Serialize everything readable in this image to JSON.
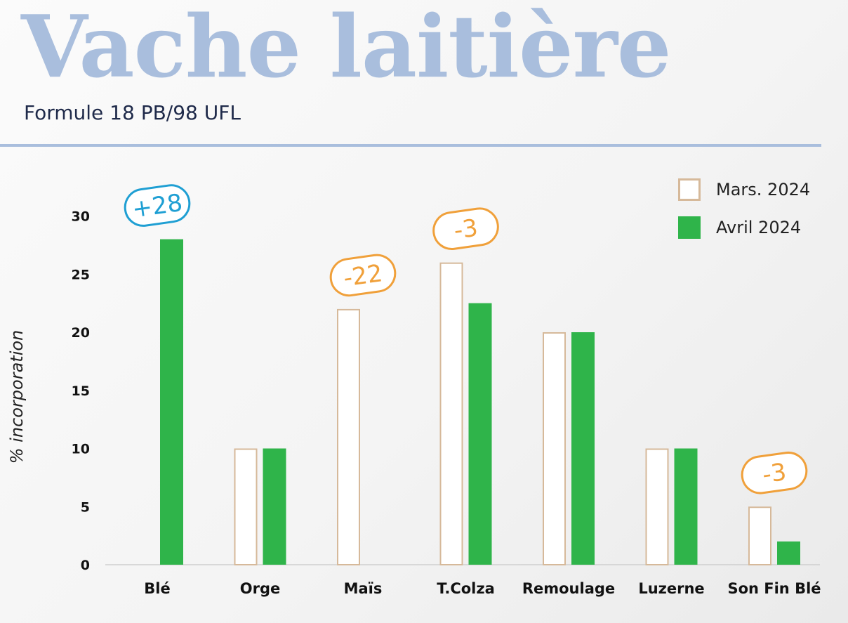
{
  "header": {
    "title": "Vache laitière",
    "subtitle": "Formule 18 PB/98 UFL"
  },
  "colors": {
    "title": "#a9bedd",
    "mars": "#d6b99a",
    "avril": "#2fb44a",
    "increase": "#1f9fd3",
    "decrease": "#f0a03a"
  },
  "chart_data": {
    "type": "bar",
    "ylabel": "% incorporation",
    "xlabel": "",
    "ylim": [
      0,
      30
    ],
    "yticks": [
      "0",
      "5",
      "10",
      "15",
      "20",
      "25",
      "30"
    ],
    "categories": [
      "Blé",
      "Orge",
      "Maïs",
      "T.Colza",
      "Remoulage",
      "Luzerne",
      "Son Fin Blé"
    ],
    "series": [
      {
        "name": "Mars. 2024",
        "values": [
          0,
          10,
          22,
          26,
          20,
          10,
          5
        ]
      },
      {
        "name": "Avril 2024",
        "values": [
          28,
          10,
          0,
          22.5,
          20,
          10,
          2
        ]
      }
    ],
    "legend_position": "top-right",
    "annotations": [
      {
        "category": "Blé",
        "text": "+28",
        "kind": "increase"
      },
      {
        "category": "Maïs",
        "text": "-22",
        "kind": "decrease"
      },
      {
        "category": "T.Colza",
        "text": "-3",
        "kind": "decrease"
      },
      {
        "category": "Son Fin Blé",
        "text": "-3",
        "kind": "decrease"
      }
    ]
  }
}
